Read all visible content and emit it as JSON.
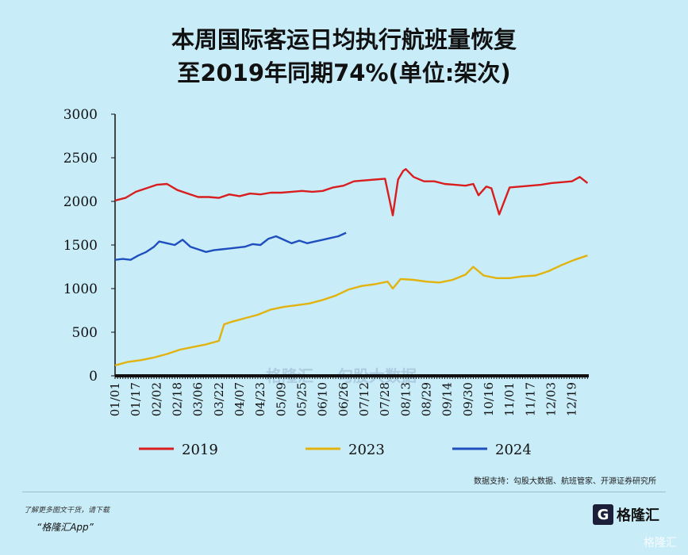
{
  "title_line1": "本周国际客运日均执行航班量恢复",
  "title_line2": "至2019年同期74%(单位:架次)",
  "source_text": "数据支持：勾股大数据、航班管家、开源证券研究所",
  "footer": {
    "line1": "了解更多图文干货，请下载",
    "line2": "“格隆汇App”",
    "logo_text": "格隆汇",
    "watermark_left": "格隆汇",
    "watermark_right": "勾股大数据",
    "corner_watermark": "格隆汇"
  },
  "colors": {
    "y2019": "#d81e1e",
    "y2023": "#e2b30e",
    "y2024": "#1f4fbf",
    "axis": "#111111"
  },
  "chart_data": {
    "type": "line",
    "title": "本周国际客运日均执行航班量恢复至2019年同期74%(单位:架次)",
    "xlabel": "",
    "ylabel": "",
    "ylim": [
      0,
      3000
    ],
    "yticks": [
      0,
      500,
      1000,
      1500,
      2000,
      2500,
      3000
    ],
    "x_tick_labels": [
      "01/01",
      "01/17",
      "02/02",
      "02/18",
      "03/06",
      "03/22",
      "04/07",
      "04/23",
      "05/09",
      "05/25",
      "06/10",
      "06/26",
      "07/12",
      "07/28",
      "08/13",
      "08/29",
      "09/14",
      "09/30",
      "10/16",
      "11/01",
      "11/17",
      "12/03",
      "12/19"
    ],
    "x_tick_days": [
      0,
      16,
      32,
      48,
      64,
      80,
      96,
      112,
      128,
      144,
      160,
      176,
      192,
      208,
      224,
      240,
      256,
      272,
      288,
      304,
      320,
      336,
      352
    ],
    "legend_position": "bottom",
    "series": [
      {
        "name": "2019",
        "x_days": [
          0,
          8,
          16,
          24,
          32,
          40,
          48,
          56,
          64,
          72,
          80,
          88,
          96,
          104,
          112,
          120,
          128,
          136,
          144,
          152,
          160,
          168,
          176,
          184,
          192,
          200,
          208,
          214,
          218,
          222,
          224,
          230,
          238,
          246,
          254,
          262,
          270,
          276,
          280,
          286,
          290,
          296,
          304,
          312,
          320,
          328,
          336,
          344,
          352,
          358,
          364
        ],
        "values": [
          2010,
          2040,
          2110,
          2150,
          2190,
          2200,
          2130,
          2090,
          2050,
          2050,
          2040,
          2080,
          2060,
          2090,
          2080,
          2100,
          2100,
          2110,
          2120,
          2110,
          2120,
          2160,
          2180,
          2230,
          2240,
          2250,
          2260,
          1840,
          2250,
          2350,
          2370,
          2280,
          2230,
          2230,
          2200,
          2190,
          2180,
          2200,
          2070,
          2170,
          2150,
          1850,
          2160,
          2170,
          2180,
          2190,
          2210,
          2220,
          2230,
          2280,
          2210
        ]
      },
      {
        "name": "2023",
        "x_days": [
          0,
          10,
          20,
          30,
          40,
          50,
          60,
          70,
          80,
          84,
          90,
          100,
          110,
          120,
          130,
          140,
          150,
          160,
          170,
          180,
          190,
          200,
          210,
          214,
          220,
          230,
          240,
          250,
          260,
          270,
          276,
          284,
          294,
          304,
          314,
          324,
          334,
          344,
          354,
          364
        ],
        "values": [
          120,
          160,
          180,
          210,
          250,
          300,
          330,
          360,
          400,
          590,
          620,
          660,
          700,
          760,
          790,
          810,
          830,
          870,
          920,
          990,
          1030,
          1050,
          1080,
          1000,
          1110,
          1100,
          1080,
          1070,
          1100,
          1160,
          1250,
          1150,
          1120,
          1120,
          1140,
          1150,
          1200,
          1270,
          1330,
          1380
        ]
      },
      {
        "name": "2024",
        "x_days": [
          0,
          6,
          12,
          18,
          24,
          30,
          34,
          40,
          46,
          52,
          58,
          64,
          70,
          76,
          82,
          88,
          94,
          100,
          106,
          112,
          118,
          124,
          130,
          136,
          142,
          148,
          154,
          160,
          166,
          172,
          178
        ],
        "values": [
          1330,
          1340,
          1330,
          1380,
          1420,
          1480,
          1540,
          1520,
          1500,
          1560,
          1480,
          1450,
          1420,
          1440,
          1450,
          1460,
          1470,
          1480,
          1510,
          1500,
          1570,
          1600,
          1560,
          1520,
          1550,
          1520,
          1540,
          1560,
          1580,
          1600,
          1640
        ]
      }
    ]
  }
}
